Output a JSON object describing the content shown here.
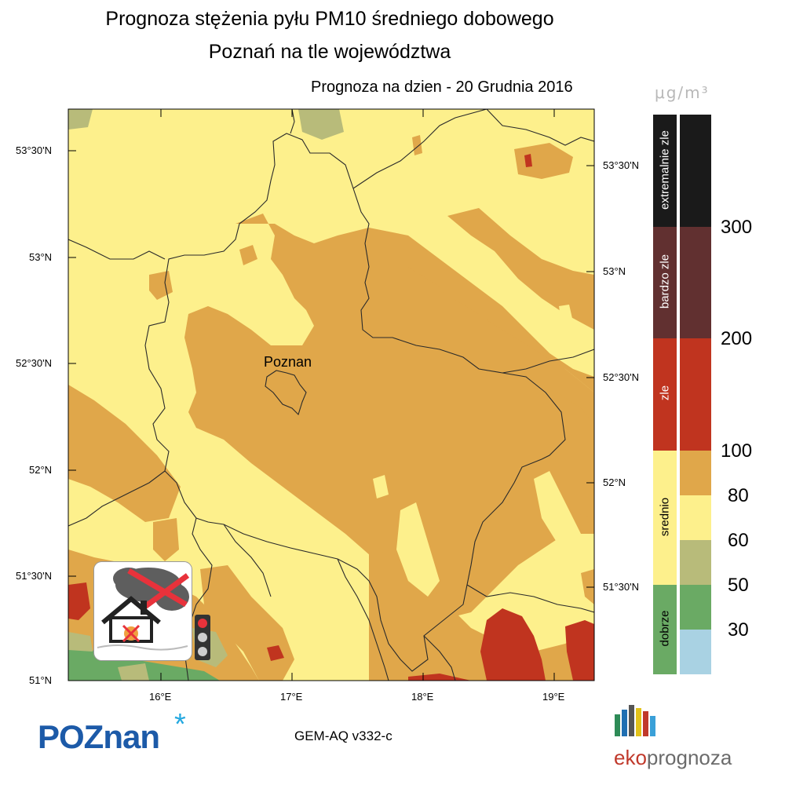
{
  "header": {
    "title_line1": "Prognoza stężenia pyłu PM10 średniego dobowego",
    "title_line2": "Poznań na tle województwa",
    "subtitle": "Prognoza na dzien -  20 Grudnia 2016"
  },
  "unit": "μg/m³",
  "map": {
    "city_label": "Poznan",
    "lat_labels_left": [
      "53°30'N",
      "53°N",
      "52°30'N",
      "52°N",
      "51°30'N",
      "51°N"
    ],
    "lat_labels_right": [
      "53°30'N",
      "53°N",
      "52°30'N",
      "52°N",
      "51°30'N"
    ],
    "lon_labels": [
      "16°E",
      "17°E",
      "18°E",
      "19°E"
    ],
    "colors": {
      "very_light_yellow": "#fdf08c",
      "orange": "#e0a74a",
      "red": "#c0341f",
      "olive": "#b8bb7a",
      "green": "#6aaa64",
      "border": "#333333"
    }
  },
  "legend": {
    "categories": [
      {
        "label": "extremalnie zle",
        "color": "#1a1a1a"
      },
      {
        "label": "bardzo zle",
        "color": "#613030"
      },
      {
        "label": "zle",
        "color": "#c0341f"
      },
      {
        "label": "srednio",
        "color": "#fdf08c"
      },
      {
        "label": "dobrze",
        "color": "#6aaa64"
      }
    ],
    "scale": [
      {
        "value": "300",
        "color": "#1a1a1a"
      },
      {
        "value": "200",
        "color": "#613030"
      },
      {
        "value": "100",
        "color": "#c0341f"
      },
      {
        "value": "80",
        "color": "#e0a74a"
      },
      {
        "value": "60",
        "color": "#fdf08c"
      },
      {
        "value": "50",
        "color": "#b8bb7a"
      },
      {
        "value": "30",
        "color": "#6aaa64"
      },
      {
        "value": "",
        "color": "#a9d2e3"
      }
    ]
  },
  "footer": {
    "logo_left": "POZnan",
    "model": "GEM-AQ v332-c",
    "logo_right_eko": "eko",
    "logo_right_rest": "prognoza"
  }
}
